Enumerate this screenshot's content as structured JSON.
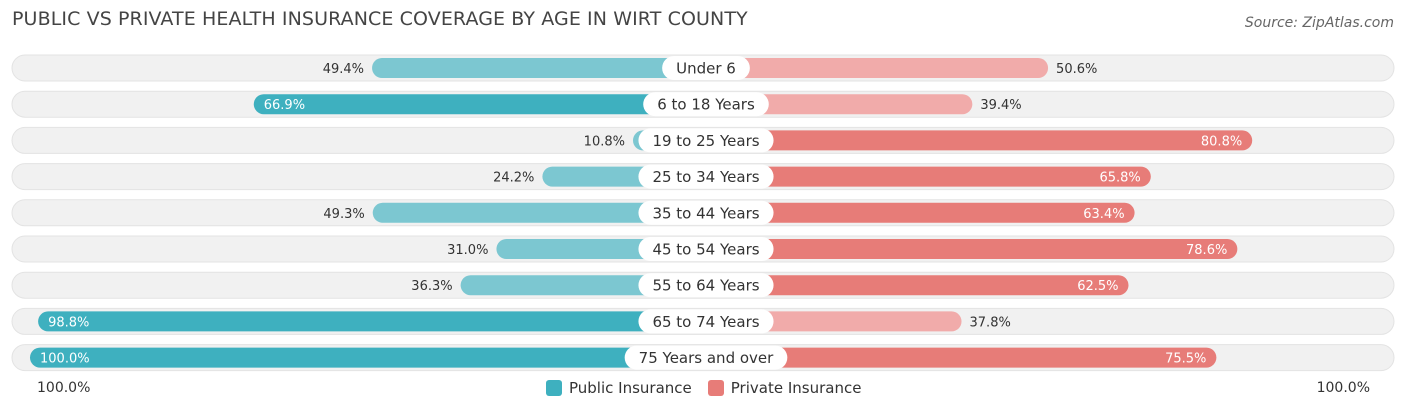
{
  "header": {
    "title": "PUBLIC VS PRIVATE HEALTH INSURANCE COVERAGE BY AGE IN WIRT COUNTY",
    "source": "Source: ZipAtlas.com"
  },
  "axis": {
    "left_label": "100.0%",
    "right_label": "100.0%"
  },
  "colors": {
    "public": "#3eb0bf",
    "public_light": "#7cc7d1",
    "private": "#e77c78",
    "private_light": "#f1abaa",
    "row_bg": "#f1f1f1"
  },
  "chart_data": {
    "type": "bar",
    "orientation": "diverging-horizontal",
    "categories": [
      "Under 6",
      "6 to 18 Years",
      "19 to 25 Years",
      "25 to 34 Years",
      "35 to 44 Years",
      "45 to 54 Years",
      "55 to 64 Years",
      "65 to 74 Years",
      "75 Years and over"
    ],
    "series": [
      {
        "name": "Public Insurance",
        "values": [
          49.4,
          66.9,
          10.8,
          24.2,
          49.3,
          31.0,
          36.3,
          98.8,
          100.0
        ],
        "labels": [
          "49.4%",
          "66.9%",
          "10.8%",
          "24.2%",
          "49.3%",
          "31.0%",
          "36.3%",
          "98.8%",
          "100.0%"
        ]
      },
      {
        "name": "Private Insurance",
        "values": [
          50.6,
          39.4,
          80.8,
          65.8,
          63.4,
          78.6,
          62.5,
          37.8,
          75.5
        ],
        "labels": [
          "50.6%",
          "39.4%",
          "80.8%",
          "65.8%",
          "63.4%",
          "78.6%",
          "62.5%",
          "37.8%",
          "75.5%"
        ]
      }
    ],
    "xlim": [
      -100,
      100
    ],
    "legend_position": "bottom-center",
    "grid": false
  }
}
